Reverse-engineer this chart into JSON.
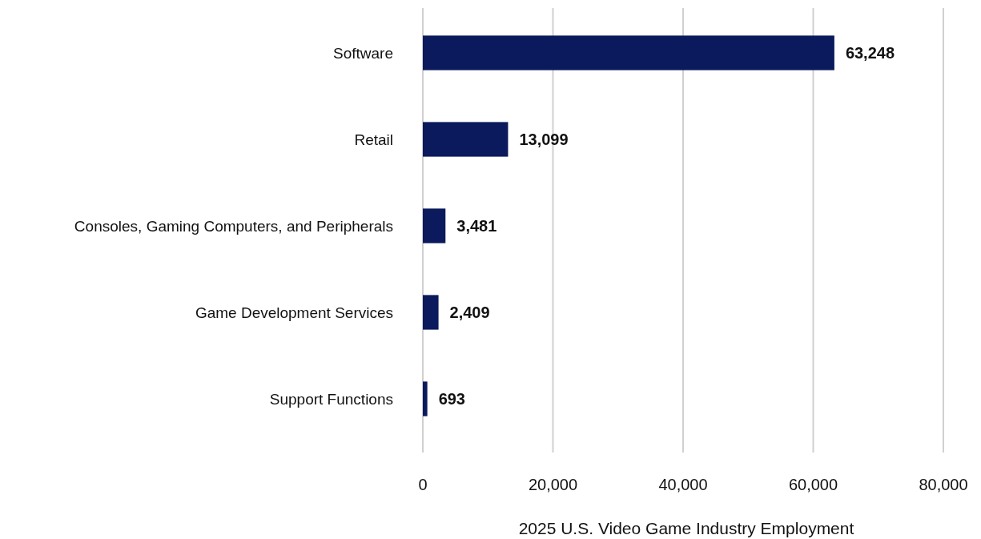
{
  "chart_data": {
    "type": "bar",
    "orientation": "horizontal",
    "xlabel": "2025 U.S. Video Game Industry Employment",
    "categories": [
      "Software",
      "Retail",
      "Consoles, Gaming Computers, and Peripherals",
      "Game Development Services",
      "Support Functions"
    ],
    "values": [
      63248,
      13099,
      3481,
      2409,
      693
    ],
    "color": "#0a1a5c",
    "xlim": [
      0,
      80000
    ],
    "xticks": [
      {
        "value": 0,
        "label": "0"
      },
      {
        "value": 20000,
        "label": "20,000"
      },
      {
        "value": 40000,
        "label": "40,000"
      },
      {
        "value": 60000,
        "label": "60,000"
      },
      {
        "value": 80000,
        "label": "80,000"
      }
    ],
    "value_labels": [
      "63,248",
      "13,099",
      "3,481",
      "2,409",
      "693"
    ],
    "grid": "x"
  }
}
